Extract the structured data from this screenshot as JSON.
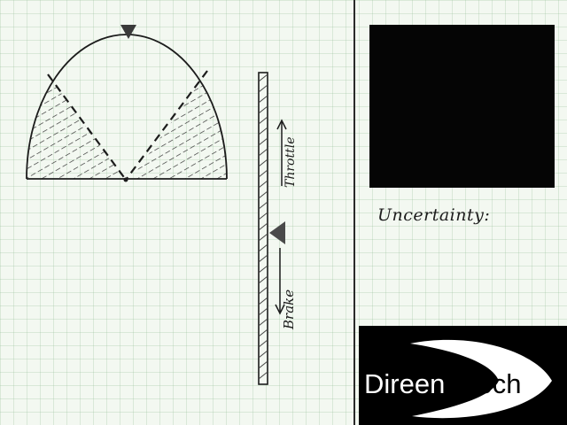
{
  "sketch": {
    "throttle_label": "Throttle",
    "brake_label": "Brake"
  },
  "panel": {
    "uncertainty_label": "Uncertainty:"
  },
  "logo": {
    "word_left": "Direen",
    "word_right": "Tech"
  },
  "colors": {
    "paper": "#f3f8f1",
    "ink": "#1c1c1c",
    "panel": "#050505",
    "logo_bg": "#000000",
    "logo_fg": "#ffffff"
  }
}
